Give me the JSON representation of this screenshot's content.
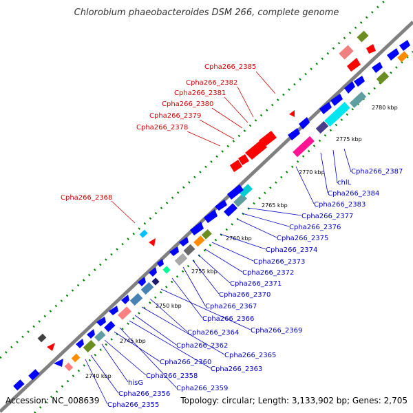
{
  "title": "Chlorobium phaeobacteroides DSM 266, complete genome",
  "footer": {
    "accession": "Accession: NC_008639",
    "summary": "Topology: circular; Length: 3,133,902 bp; Genes: 2,705"
  },
  "colors": {
    "backbone": "#808080",
    "forward_gene": "#0000ff",
    "reverse_gene": "#ff0000",
    "highlight_red_label": "#d00000",
    "label_blue": "#0000c8",
    "dots": "#008000"
  },
  "scale_ticks": [
    "2740 kbp",
    "2745 kbp",
    "2750 kbp",
    "2755 kbp",
    "2760 kbp",
    "2765 kbp",
    "2770 kbp",
    "2775 kbp",
    "2780 kbp"
  ],
  "upper_labels": [
    "Cpha266_2385",
    "Cpha266_2382",
    "Cpha266_2381",
    "Cpha266_2380",
    "Cpha266_2379",
    "Cpha266_2378",
    "Cpha266_2368"
  ],
  "lower_labels": [
    "Cpha266_2387",
    "chlL",
    "Cpha266_2384",
    "Cpha266_2383",
    "Cpha266_2377",
    "Cpha266_2376",
    "Cpha266_2375",
    "Cpha266_2374",
    "Cpha266_2373",
    "Cpha266_2372",
    "Cpha266_2371",
    "Cpha266_2370",
    "Cpha266_2367",
    "Cpha266_2366",
    "Cpha266_2369",
    "Cpha266_2364",
    "Cpha266_2365",
    "Cpha266_2362",
    "Cpha266_2363",
    "Cpha266_2360",
    "Cpha266_2358",
    "hisG",
    "Cpha266_2359",
    "Cpha266_2356",
    "Cpha266_2355"
  ]
}
